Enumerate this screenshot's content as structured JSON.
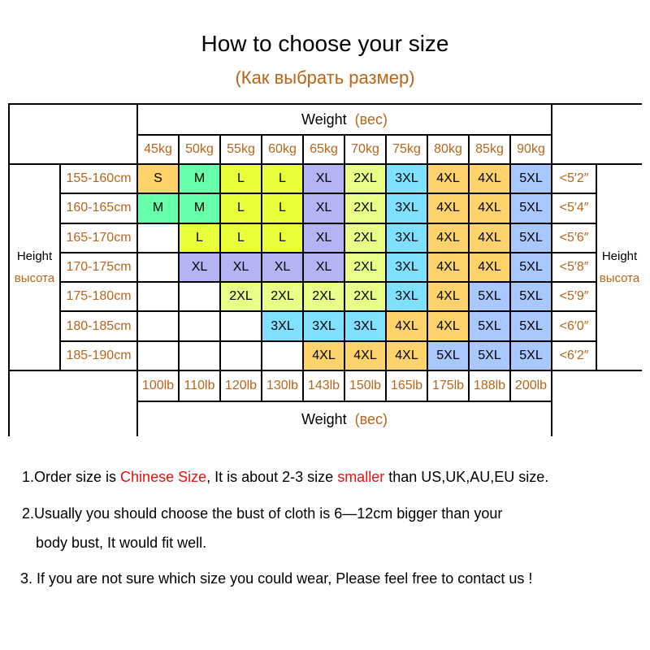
{
  "title": "How to choose your size",
  "subtitle": "(Как выбрать размер)",
  "table": {
    "weight_label": "Weight",
    "weight_label_ru": "(вес)",
    "height_label": "Height",
    "height_label_ru": "высота",
    "kg": [
      "45kg",
      "50kg",
      "55kg",
      "60kg",
      "65kg",
      "70kg",
      "75kg",
      "80kg",
      "85kg",
      "90kg"
    ],
    "lb": [
      "100lb",
      "110lb",
      "120lb",
      "130lb",
      "143lb",
      "150lb",
      "165lb",
      "175lb",
      "188lb",
      "200lb"
    ],
    "cm": [
      "155-160cm",
      "160-165cm",
      "165-170cm",
      "170-175cm",
      "175-180cm",
      "180-185cm",
      "185-190cm"
    ],
    "inches": [
      "<5′2″",
      "<5′4″",
      "<5′6″",
      "<5′8″",
      "<5′9″",
      "<6′0″",
      "<6′2″"
    ],
    "sizes": [
      [
        "S",
        "M",
        "L",
        "L",
        "XL",
        "2XL",
        "3XL",
        "4XL",
        "4XL",
        "5XL"
      ],
      [
        "M",
        "M",
        "L",
        "L",
        "XL",
        "2XL",
        "3XL",
        "4XL",
        "4XL",
        "5XL"
      ],
      [
        "",
        "L",
        "L",
        "L",
        "XL",
        "2XL",
        "3XL",
        "4XL",
        "4XL",
        "5XL"
      ],
      [
        "",
        "XL",
        "XL",
        "XL",
        "XL",
        "2XL",
        "3XL",
        "4XL",
        "4XL",
        "5XL"
      ],
      [
        "",
        "",
        "2XL",
        "2XL",
        "2XL",
        "2XL",
        "3XL",
        "4XL",
        "5XL",
        "5XL"
      ],
      [
        "",
        "",
        "",
        "3XL",
        "3XL",
        "3XL",
        "4XL",
        "4XL",
        "5XL",
        "5XL"
      ],
      [
        "",
        "",
        "",
        "",
        "4XL",
        "4XL",
        "4XL",
        "5XL",
        "5XL",
        "5XL"
      ]
    ],
    "size_colors": {
      "S": "#ffd36b",
      "M": "#66ffaa",
      "L": "#e8ff3a",
      "XL": "#b4b4f5",
      "2XL": "#e8ff88",
      "3XL": "#7fe0ff",
      "4XL": "#ffd36b",
      "5XL": "#a8c8ff"
    }
  },
  "notes": {
    "n1_a": "1.Order size is ",
    "n1_b": "Chinese Size",
    "n1_c": ", It is about 2-3 size ",
    "n1_d": "smaller",
    "n1_e": " than US,UK,AU,EU size.",
    "n2_a": "2.Usually you should choose the bust of cloth is 6—12cm bigger than your",
    "n2_b": "body bust, It would fit well.",
    "n3": "3. If you are not sure which size you could wear, Please feel free to contact us !"
  }
}
